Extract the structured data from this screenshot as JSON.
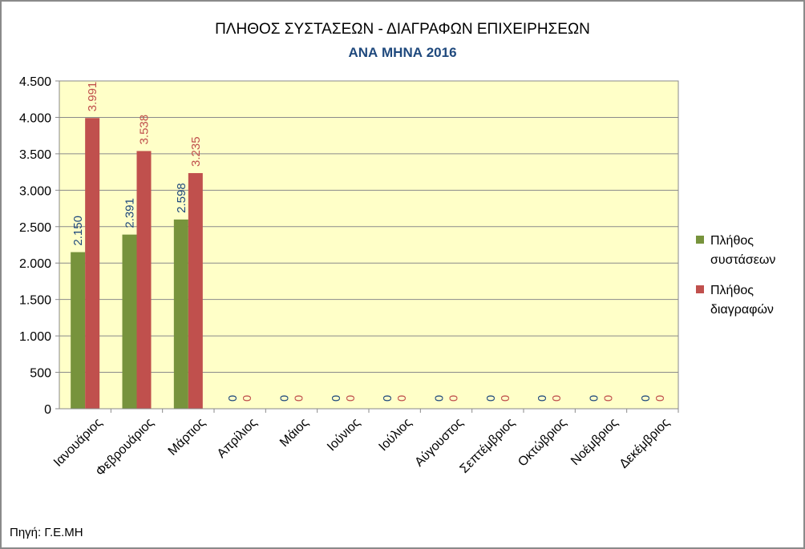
{
  "chart_data": {
    "type": "bar",
    "title": "ΠΛΗΘΟΣ ΣΥΣΤΑΣΕΩΝ - ΔΙΑΓΡΑΦΩΝ ΕΠΙΧΕΙΡΗΣΕΩΝ",
    "subtitle": "ΑΝΑ ΜΗΝΑ 2016",
    "categories": [
      "Ιανουάριος",
      "Φεβρουάριος",
      "Μάρτιος",
      "Απρίλιος",
      "Μάιος",
      "Ιούνιος",
      "Ιούλιος",
      "Αύγουστος",
      "Σεπτέμβριος",
      "Οκτώβριος",
      "Νοέμβριος",
      "Δεκέμβριος"
    ],
    "series": [
      {
        "name": "Πλήθος συστάσεων",
        "legend_lines": [
          "Πλήθος",
          "συστάσεων"
        ],
        "color": "#77933c",
        "label_color": "#1f497d",
        "values": [
          2150,
          2391,
          2598,
          0,
          0,
          0,
          0,
          0,
          0,
          0,
          0,
          0
        ],
        "labels": [
          "2.150",
          "2.391",
          "2.598",
          "0",
          "0",
          "0",
          "0",
          "0",
          "0",
          "0",
          "0",
          "0"
        ]
      },
      {
        "name": "Πλήθος διαγραφών",
        "legend_lines": [
          "Πλήθος",
          "διαγραφών"
        ],
        "color": "#c0504d",
        "label_color": "#c0504d",
        "values": [
          3991,
          3538,
          3235,
          0,
          0,
          0,
          0,
          0,
          0,
          0,
          0,
          0
        ],
        "labels": [
          "3.991",
          "3.538",
          "3.235",
          "0",
          "0",
          "0",
          "0",
          "0",
          "0",
          "0",
          "0",
          "0"
        ]
      }
    ],
    "ylim": [
      0,
      4500
    ],
    "yticks": [
      0,
      500,
      1000,
      1500,
      2000,
      2500,
      3000,
      3500,
      4000,
      4500
    ],
    "ytick_labels": [
      "0",
      "500",
      "1.000",
      "1.500",
      "2.000",
      "2.500",
      "3.000",
      "3.500",
      "4.000",
      "4.500"
    ],
    "grid": true,
    "legend_position": "right",
    "plot_background": "#ffffc8",
    "title_color": "#000000",
    "subtitle_color": "#1f497d"
  },
  "source_note": "Πηγή: Γ.Ε.ΜΗ"
}
